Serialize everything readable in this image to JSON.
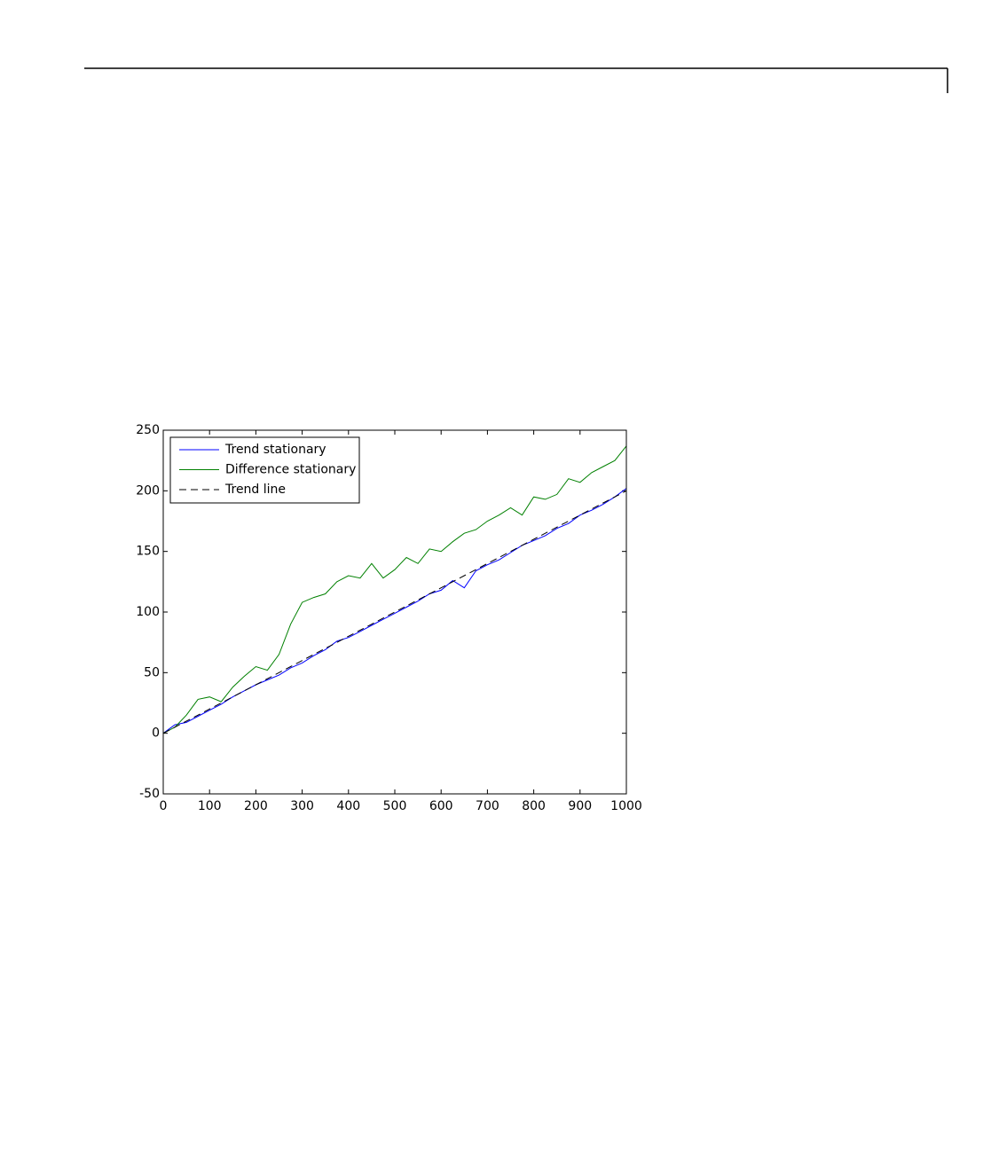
{
  "chart_data": {
    "type": "line",
    "x": [
      0,
      25,
      50,
      75,
      100,
      125,
      150,
      175,
      200,
      225,
      250,
      275,
      300,
      325,
      350,
      375,
      400,
      425,
      450,
      475,
      500,
      525,
      550,
      575,
      600,
      625,
      650,
      675,
      700,
      725,
      750,
      775,
      800,
      825,
      850,
      875,
      900,
      925,
      950,
      975,
      1000
    ],
    "series": [
      {
        "name": "Trend stationary",
        "color": "#0000ff",
        "dash": false,
        "values": [
          0,
          7,
          9,
          14,
          19,
          24,
          30,
          35,
          40,
          44,
          48,
          54,
          58,
          64,
          69,
          76,
          79,
          84,
          89,
          94,
          99,
          104,
          109,
          115,
          118,
          126,
          120,
          134,
          139,
          143,
          149,
          155,
          159,
          163,
          169,
          173,
          180,
          184,
          189,
          195,
          202
        ]
      },
      {
        "name": "Difference stationary",
        "color": "#008000",
        "dash": false,
        "values": [
          0,
          5,
          15,
          28,
          30,
          26,
          38,
          47,
          55,
          52,
          65,
          90,
          108,
          112,
          115,
          125,
          130,
          128,
          140,
          128,
          135,
          145,
          140,
          152,
          150,
          158,
          165,
          168,
          175,
          180,
          186,
          180,
          195,
          193,
          197,
          210,
          207,
          215,
          220,
          225,
          237
        ]
      },
      {
        "name": "Trend line",
        "color": "#000000",
        "dash": true,
        "values": [
          0,
          5,
          10,
          15,
          20,
          25,
          30,
          35,
          40,
          45,
          50,
          55,
          60,
          65,
          70,
          75,
          80,
          85,
          90,
          95,
          100,
          105,
          110,
          115,
          120,
          125,
          130,
          135,
          140,
          145,
          150,
          155,
          160,
          165,
          170,
          175,
          180,
          185,
          190,
          195,
          200
        ]
      }
    ],
    "xlim": [
      0,
      1000
    ],
    "xticks": [
      0,
      100,
      200,
      300,
      400,
      500,
      600,
      700,
      800,
      900,
      1000
    ],
    "ylim": [
      -50,
      250
    ],
    "yticks": [
      -50,
      0,
      50,
      100,
      150,
      200,
      250
    ],
    "grid": false,
    "legend": "upper-left"
  }
}
